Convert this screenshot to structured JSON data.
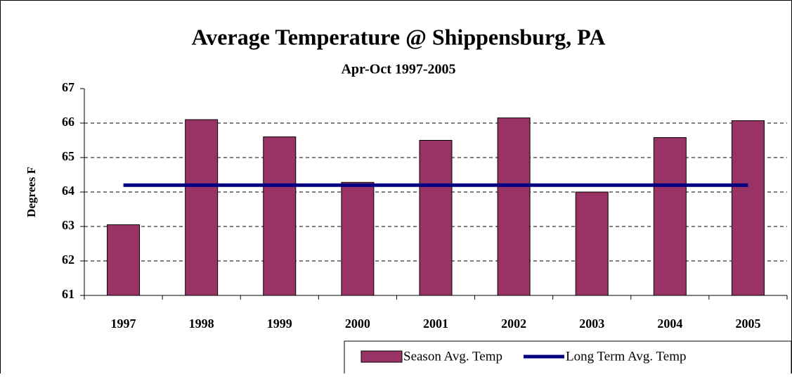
{
  "chart_data": {
    "type": "bar",
    "title": "Average Temperature @ Shippensburg, PA",
    "subtitle": "Apr-Oct 1997-2005",
    "y_label": "Degrees F",
    "categories": [
      "1997",
      "1998",
      "1999",
      "2000",
      "2001",
      "2002",
      "2003",
      "2004",
      "2005"
    ],
    "series": [
      {
        "name": "Season Avg. Temp",
        "color": "#993366",
        "type": "bar",
        "values": [
          63.05,
          66.1,
          65.6,
          64.28,
          65.5,
          66.15,
          64.0,
          65.58,
          66.07
        ]
      },
      {
        "name": "Long Term Avg. Temp",
        "color": "#000080",
        "type": "line",
        "values": [
          64.2,
          64.2,
          64.2,
          64.2,
          64.2,
          64.2,
          64.2,
          64.2,
          64.2
        ]
      }
    ],
    "ylim": [
      61,
      67
    ],
    "yticks": [
      61,
      62,
      63,
      64,
      65,
      66,
      67
    ],
    "grid": true,
    "legend": "bottom-right"
  }
}
